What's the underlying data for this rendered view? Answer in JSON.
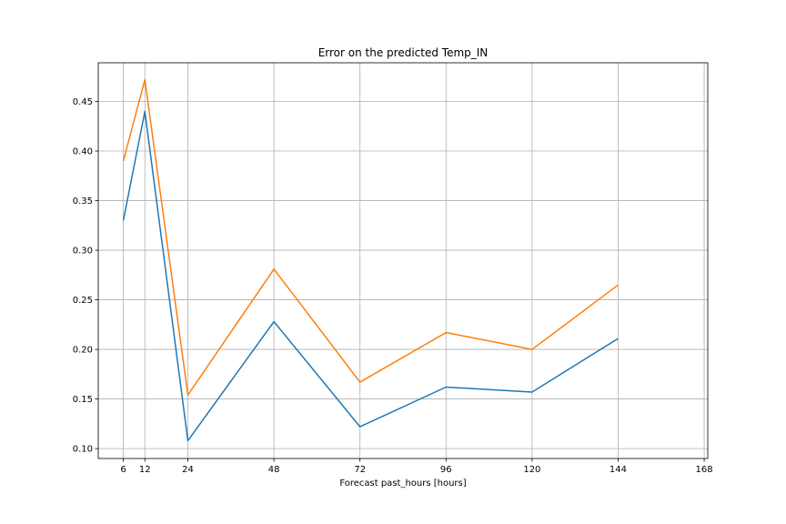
{
  "chart_data": {
    "type": "line",
    "title": "Error on the predicted Temp_IN",
    "xlabel": "Forecast past_hours [hours]",
    "ylabel": "",
    "x": [
      6,
      12,
      24,
      48,
      72,
      96,
      120,
      144
    ],
    "xticks": [
      6,
      12,
      24,
      48,
      72,
      96,
      120,
      144,
      168
    ],
    "xlim": [
      -1,
      169
    ],
    "yticks": [
      0.1,
      0.15,
      0.2,
      0.25,
      0.3,
      0.35,
      0.4,
      0.45
    ],
    "ytick_labels": [
      "0.10",
      "0.15",
      "0.20",
      "0.25",
      "0.30",
      "0.35",
      "0.40",
      "0.45"
    ],
    "ylim": [
      0.09,
      0.489
    ],
    "grid": true,
    "series": [
      {
        "color": "#1f77b4",
        "values": [
          0.33,
          0.44,
          0.108,
          0.228,
          0.122,
          0.162,
          0.157,
          0.211
        ]
      },
      {
        "color": "#ff7f0e",
        "values": [
          0.39,
          0.472,
          0.154,
          0.281,
          0.167,
          0.217,
          0.2,
          0.265
        ]
      }
    ]
  }
}
